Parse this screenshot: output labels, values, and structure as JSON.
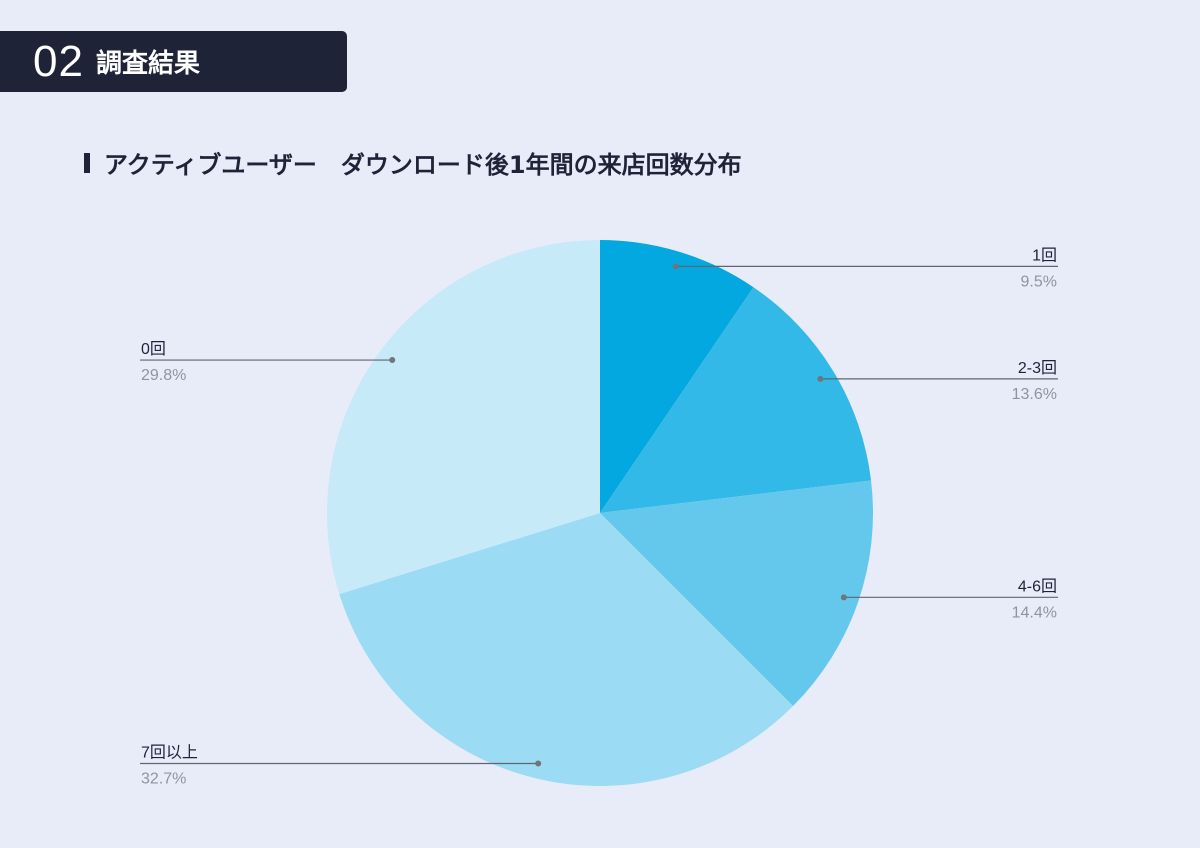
{
  "header": {
    "number": "02",
    "title": "調査結果"
  },
  "chart_data": {
    "type": "pie",
    "title": "アクティブユーザー　ダウンロード後1年間の来店回数分布",
    "start": "top",
    "direction": "clockwise",
    "slices": [
      {
        "label": "1回",
        "value": 9.5,
        "value_label": "9.5%",
        "color": "#03a8e0",
        "side": "right"
      },
      {
        "label": "2-3回",
        "value": 13.6,
        "value_label": "13.6%",
        "color": "#33b9e8",
        "side": "right"
      },
      {
        "label": "4-6回",
        "value": 14.4,
        "value_label": "14.4%",
        "color": "#64c8ed",
        "side": "right"
      },
      {
        "label": "7回以上",
        "value": 32.7,
        "value_label": "32.7%",
        "color": "#9bdbf4",
        "side": "left"
      },
      {
        "label": "0回",
        "value": 29.8,
        "value_label": "29.8%",
        "color": "#c7eaf8",
        "side": "left"
      }
    ]
  }
}
